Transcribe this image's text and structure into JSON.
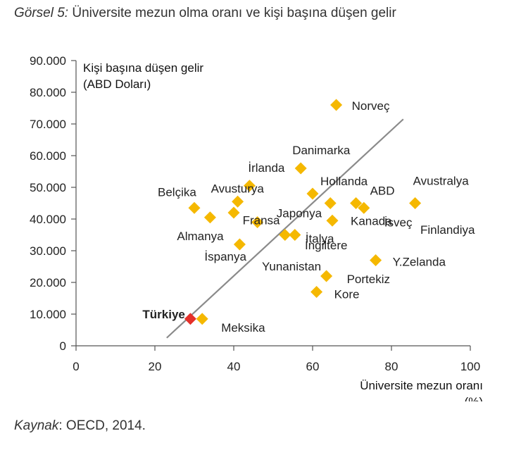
{
  "caption": {
    "prefix": "Görsel 5:",
    "text": " Üniversite mezun olma oranı ve kişi başına düşen gelir"
  },
  "source": {
    "prefix": "Kaynak",
    "text": ": OECD, 2014."
  },
  "chart_data": {
    "type": "scatter",
    "ylabel_lines": [
      "Kişi başına düşen gelir",
      "(ABD Doları)"
    ],
    "xlabel_lines": [
      "Üniversite mezun oranı",
      "(%)"
    ],
    "xlim": [
      0,
      100
    ],
    "ylim": [
      0,
      90000
    ],
    "x_ticks": [
      0,
      20,
      40,
      60,
      80,
      100
    ],
    "x_tick_labels": [
      "0",
      "20",
      "40",
      "60",
      "80",
      "100"
    ],
    "y_ticks": [
      0,
      10000,
      20000,
      30000,
      40000,
      50000,
      60000,
      70000,
      80000,
      90000
    ],
    "y_tick_labels": [
      "0",
      "10.000",
      "20.000",
      "30.000",
      "40.000",
      "50.000",
      "60.000",
      "70.000",
      "80.000",
      "90.000"
    ],
    "grid": false,
    "point_color": "#f5b800",
    "highlight_color": "#e5302a",
    "trendline_color": "#8a8a8a",
    "trendline": {
      "x": [
        23,
        83
      ],
      "y": [
        2500,
        71500
      ]
    },
    "points": [
      {
        "x": 66,
        "y": 76000,
        "label": "Norveç"
      },
      {
        "x": 57,
        "y": 56000,
        "label": "Danimarka"
      },
      {
        "x": 44,
        "y": 50500,
        "label": "İrlanda"
      },
      {
        "x": 60,
        "y": 48000,
        "label": "Hollanda"
      },
      {
        "x": 30,
        "y": 43500,
        "label": "Belçika"
      },
      {
        "x": 41,
        "y": 45500,
        "label": "Avusturya"
      },
      {
        "x": 71,
        "y": 45000,
        "label": "ABD"
      },
      {
        "x": 86,
        "y": 45000,
        "label": "Avustralya"
      },
      {
        "x": 64.5,
        "y": 45000,
        "label": ""
      },
      {
        "x": 73,
        "y": 43500,
        "label": "İsveç"
      },
      {
        "x": 34,
        "y": 40500,
        "label": "Almanya"
      },
      {
        "x": 40,
        "y": 42000,
        "label": ""
      },
      {
        "x": 46,
        "y": 39000,
        "label": "Fransa"
      },
      {
        "x": 65,
        "y": 39500,
        "label": "Kanada"
      },
      {
        "x": 53,
        "y": 35000,
        "label": "Japonya"
      },
      {
        "x": 55.5,
        "y": 35000,
        "label": "İtalya"
      },
      {
        "x": 41.5,
        "y": 32000,
        "label": "İspanya"
      },
      {
        "x": 76,
        "y": 27000,
        "label": "Y.Zelanda"
      },
      {
        "x": 63.5,
        "y": 22000,
        "label": "Portekiz"
      },
      {
        "x": 61,
        "y": 17000,
        "label": "Kore"
      },
      {
        "x": 32,
        "y": 8500,
        "label": "Meksika"
      },
      {
        "x": 29,
        "y": 8500,
        "label": "Türkiye",
        "highlight": true
      }
    ],
    "extra_labels": [
      {
        "text": "Finlandiya"
      },
      {
        "text": "İngiltere"
      },
      {
        "text": "Yunanistan"
      }
    ]
  }
}
